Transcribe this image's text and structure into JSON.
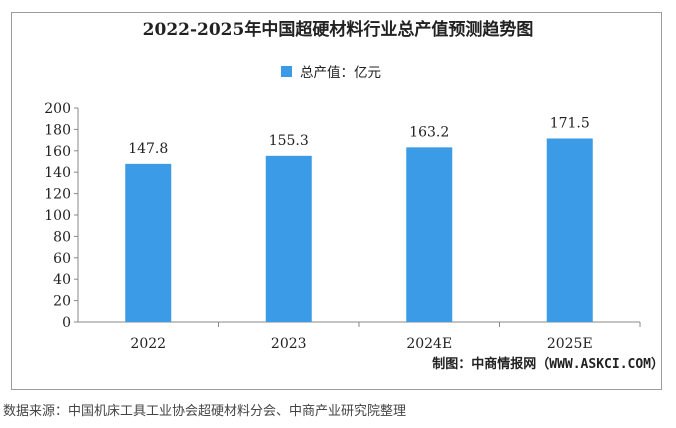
{
  "chart_data": {
    "type": "bar",
    "title": "2022-2025年中国超硬材料行业总产值预测趋势图",
    "categories": [
      "2022",
      "2023",
      "2024E",
      "2025E"
    ],
    "series": [
      {
        "name": "总产值：亿元",
        "values": [
          147.8,
          155.3,
          163.2,
          171.5
        ]
      }
    ],
    "ylim": [
      0,
      200
    ],
    "yticks": [
      0,
      20,
      40,
      60,
      80,
      100,
      120,
      140,
      160,
      180,
      200
    ],
    "grid": false,
    "legend_position": "top-center",
    "bar_color": "#3c9be6"
  },
  "footer": {
    "credit": "制图：中商情报网（WWW.ASKCI.COM）"
  },
  "source": "数据来源：中国机床工具工业协会超硬材料分会、中商产业研究院整理"
}
